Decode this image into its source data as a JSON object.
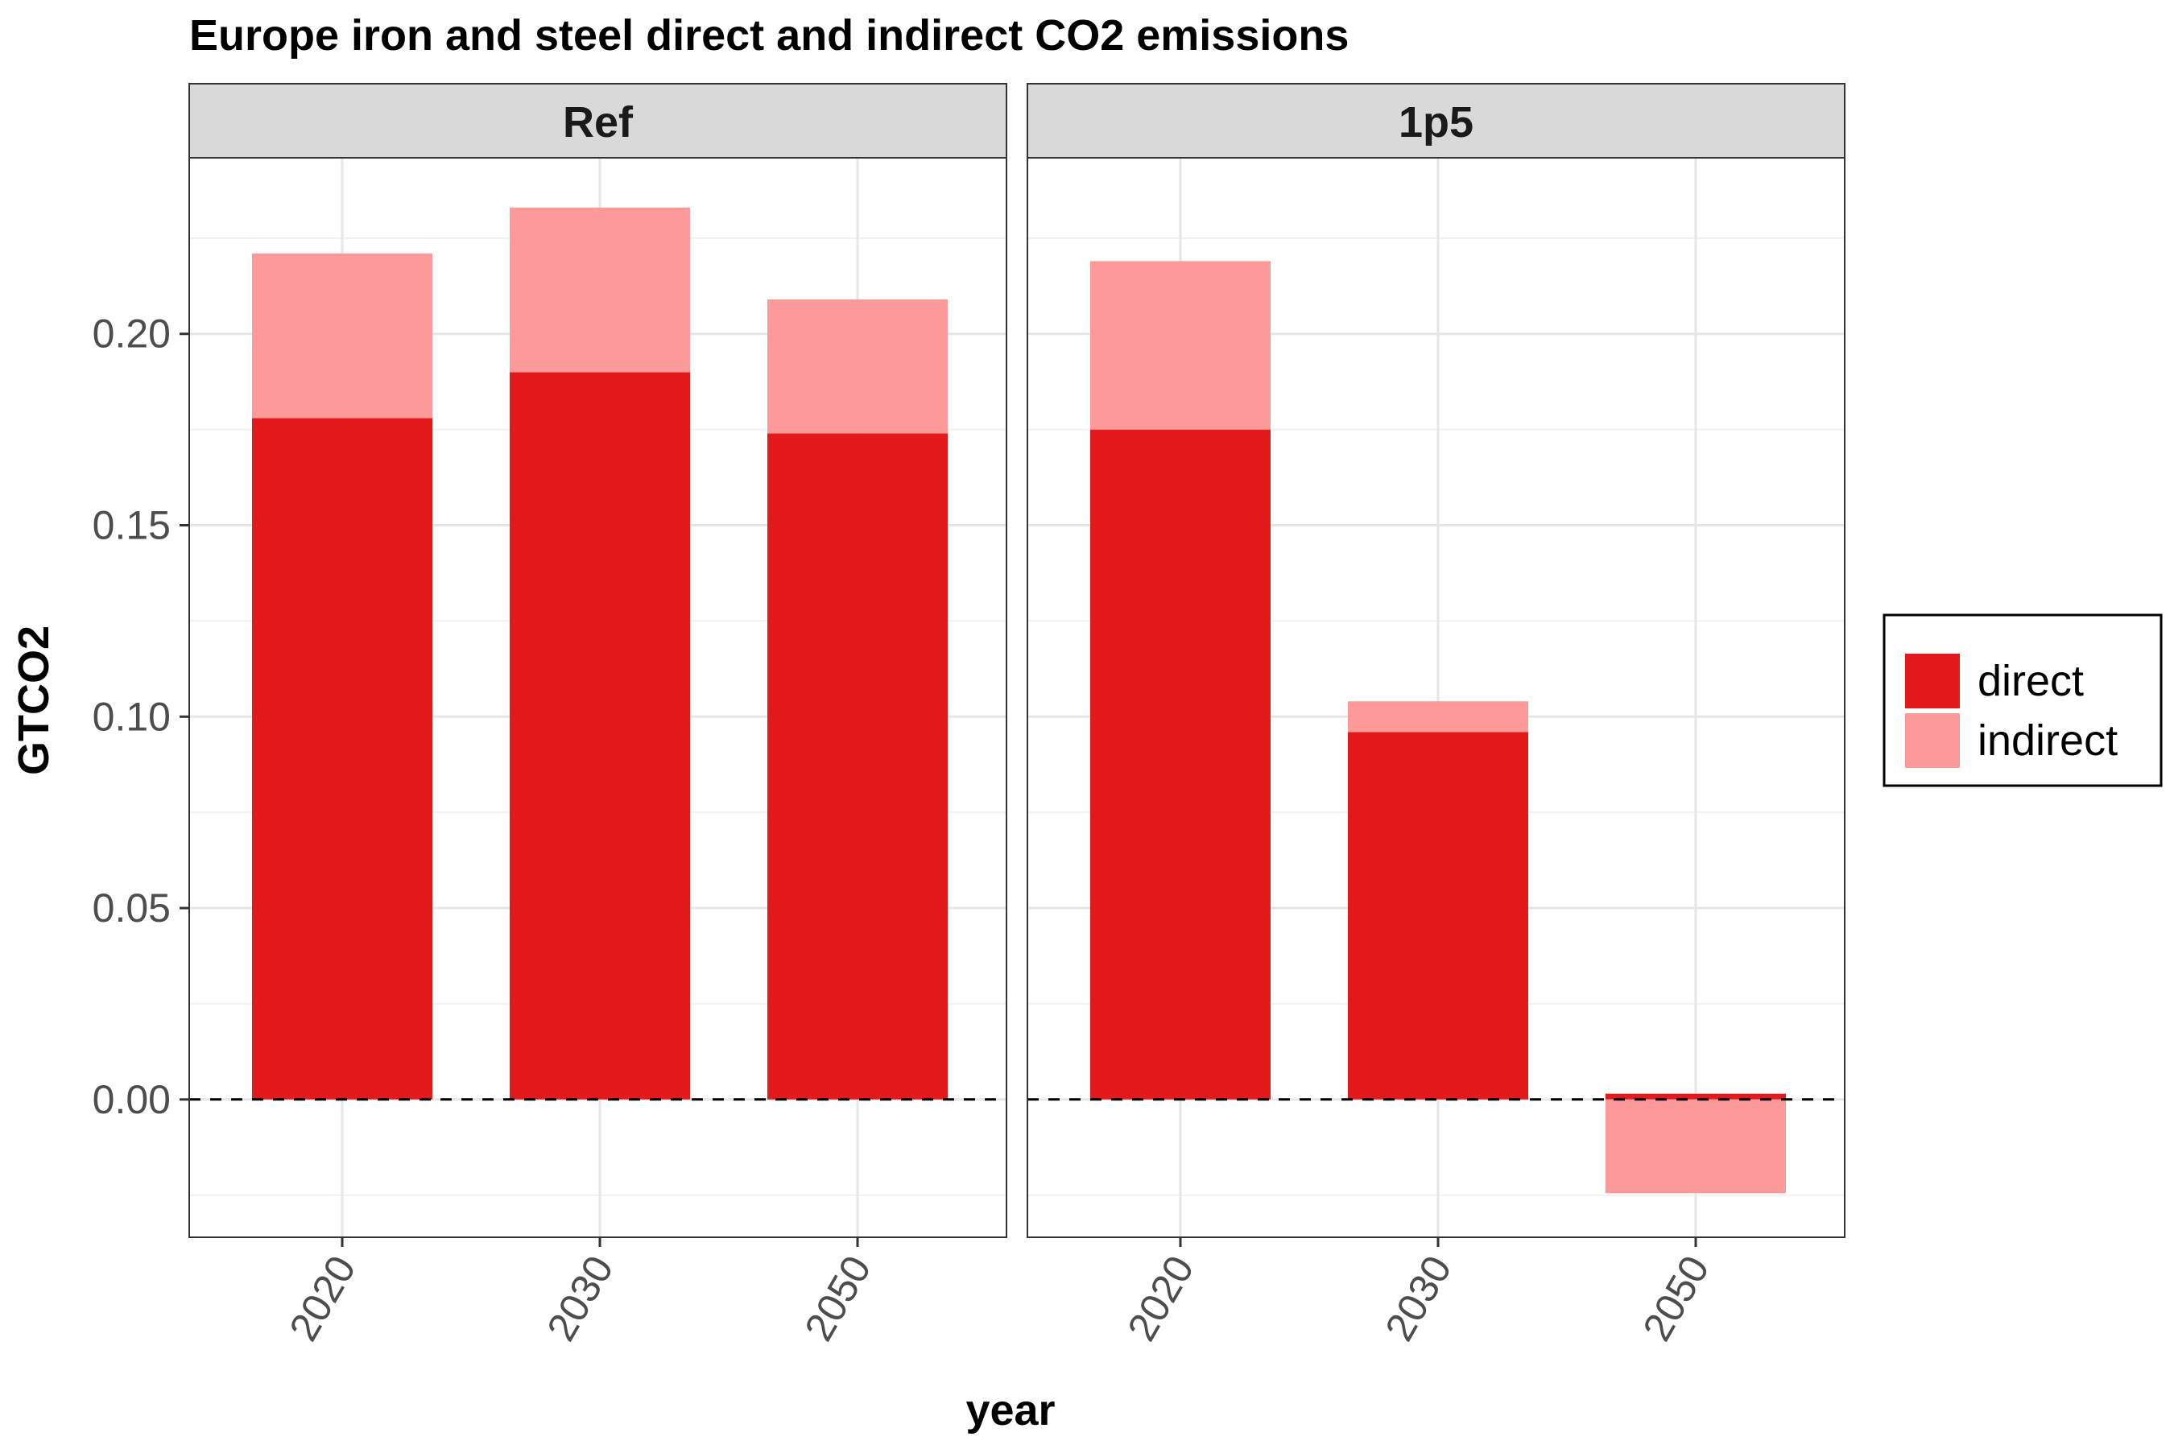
{
  "chart_data": {
    "type": "bar",
    "stacked": true,
    "title": "Europe iron and steel direct and indirect CO2 emissions",
    "xlabel": "year",
    "ylabel": "GTCO2",
    "ylim": [
      -0.036,
      0.246
    ],
    "yticks": [
      "0.00",
      "0.05",
      "0.10",
      "0.15",
      "0.20"
    ],
    "ytick_values": [
      0.0,
      0.05,
      0.1,
      0.15,
      0.2
    ],
    "grid": true,
    "zero_line": "dashed",
    "legend_position": "right",
    "colors": {
      "direct": "#e31a1c",
      "indirect": "#fb9a99"
    },
    "legend": [
      {
        "label": "direct",
        "color": "#e31a1c"
      },
      {
        "label": "indirect",
        "color": "#fb9a99"
      }
    ],
    "panels": [
      {
        "name": "Ref",
        "categories": [
          "2020",
          "2030",
          "2050"
        ],
        "series": [
          {
            "name": "direct",
            "values": [
              0.178,
              0.19,
              0.174
            ]
          },
          {
            "name": "indirect",
            "values": [
              0.043,
              0.043,
              0.035
            ]
          }
        ]
      },
      {
        "name": "1p5",
        "categories": [
          "2020",
          "2030",
          "2050"
        ],
        "series": [
          {
            "name": "direct",
            "values": [
              0.175,
              0.096,
              0.0015
            ]
          },
          {
            "name": "indirect",
            "values": [
              0.044,
              0.008,
              -0.0245
            ]
          }
        ]
      }
    ]
  }
}
